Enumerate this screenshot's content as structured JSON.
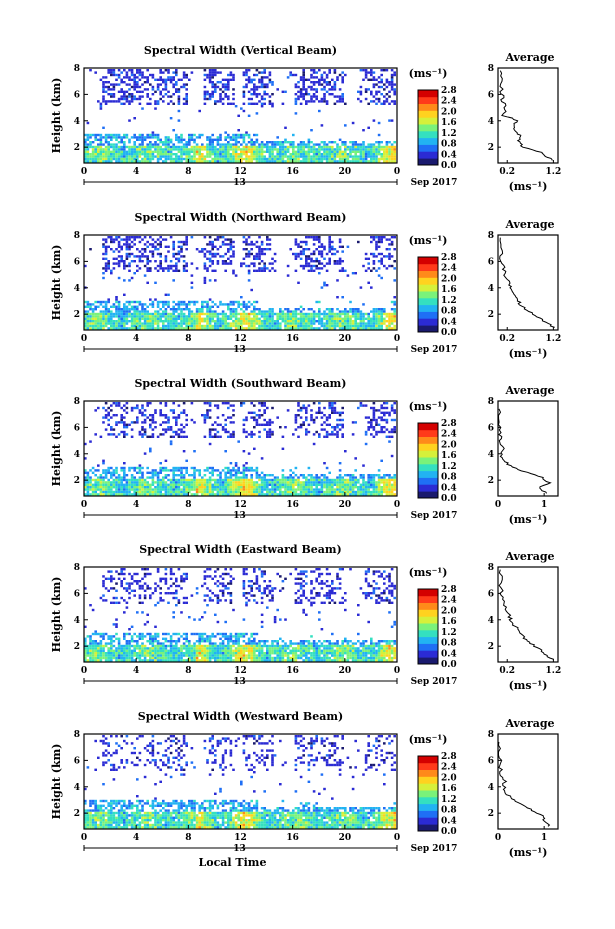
{
  "figure": {
    "date_label": "Sep 2017",
    "x_axis_label": "Local Time",
    "height_axis_label": "Height (km)",
    "colorbar_unit": "(ms⁻¹)",
    "average_title": "Average",
    "average_unit": "(ms⁻¹)"
  },
  "colorbar": {
    "ticks": [
      "2.8",
      "2.4",
      "2.0",
      "1.6",
      "1.2",
      "0.8",
      "0.4",
      "0.0"
    ],
    "colors": [
      "#1a1a6e",
      "#2b2bd4",
      "#1f6ff5",
      "#22b3f2",
      "#34e0c0",
      "#7af27a",
      "#d6f03a",
      "#ffd21f",
      "#ff8a1a",
      "#ff3a1a",
      "#d40000"
    ]
  },
  "chart_data": [
    {
      "type": "heatmap",
      "title": "Spectral Width (Vertical Beam)",
      "xlabel": "",
      "ylabel": "Height (km)",
      "x_ticks": [
        "0",
        "4",
        "8",
        "12",
        "16",
        "20",
        "0"
      ],
      "x_day_label": "13",
      "y_ticks": [
        "8",
        "6",
        "4",
        "2"
      ],
      "xlim": [
        0,
        24
      ],
      "ylim": [
        0.8,
        8
      ],
      "value_range": [
        0.0,
        2.8
      ],
      "average": {
        "title": "Average",
        "xlabel": "(ms⁻¹)",
        "x_ticks": [
          "0.2",
          "1.2"
        ],
        "xlim": [
          0,
          1.3
        ],
        "y_ticks": [
          "8",
          "6",
          "4",
          "2"
        ],
        "profile_height": [
          1.0,
          1.3,
          1.6,
          2.0,
          2.4,
          2.8,
          3.2,
          3.6,
          4.0,
          4.4,
          5.0,
          5.6,
          6.2,
          7.0,
          7.8
        ],
        "profile_width": [
          1.2,
          1.05,
          0.95,
          0.55,
          0.45,
          0.5,
          0.35,
          0.32,
          0.45,
          0.12,
          0.15,
          0.1,
          0.08,
          0.06,
          0.05
        ]
      }
    },
    {
      "type": "heatmap",
      "title": "Spectral Width (Northward Beam)",
      "xlabel": "",
      "ylabel": "Height (km)",
      "x_ticks": [
        "0",
        "4",
        "8",
        "12",
        "16",
        "20",
        "0"
      ],
      "x_day_label": "13",
      "y_ticks": [
        "8",
        "6",
        "4",
        "2"
      ],
      "xlim": [
        0,
        24
      ],
      "ylim": [
        0.8,
        8
      ],
      "value_range": [
        0.0,
        2.8
      ],
      "average": {
        "title": "Average",
        "xlabel": "(ms⁻¹)",
        "x_ticks": [
          "0.2",
          "1.2"
        ],
        "xlim": [
          0,
          1.3
        ],
        "y_ticks": [
          "8",
          "6",
          "4",
          "2"
        ],
        "profile_height": [
          1.0,
          1.4,
          1.8,
          2.2,
          2.6,
          3.0,
          3.4,
          3.8,
          4.2,
          4.8,
          5.4,
          6.0,
          6.8,
          7.8
        ],
        "profile_width": [
          1.2,
          1.05,
          0.85,
          0.7,
          0.5,
          0.45,
          0.38,
          0.3,
          0.25,
          0.18,
          0.12,
          0.08,
          0.06,
          0.05
        ]
      }
    },
    {
      "type": "heatmap",
      "title": "Spectral Width (Southward Beam)",
      "xlabel": "",
      "ylabel": "Height (km)",
      "x_ticks": [
        "0",
        "4",
        "8",
        "12",
        "16",
        "20",
        "0"
      ],
      "x_day_label": "13",
      "y_ticks": [
        "8",
        "6",
        "4",
        "2"
      ],
      "xlim": [
        0,
        24
      ],
      "ylim": [
        0.8,
        8
      ],
      "value_range": [
        0.0,
        2.8
      ],
      "average": {
        "title": "Average",
        "xlabel": "(ms⁻¹)",
        "x_ticks": [
          "0",
          "1"
        ],
        "xlim": [
          0,
          1.3
        ],
        "y_ticks": [
          "8",
          "6",
          "4",
          "2"
        ],
        "profile_height": [
          1.0,
          1.4,
          1.8,
          2.2,
          2.6,
          3.0,
          3.4,
          3.8,
          4.4,
          5.0,
          5.6,
          6.4,
          7.4
        ],
        "profile_width": [
          1.05,
          0.9,
          1.1,
          0.95,
          0.6,
          0.3,
          0.15,
          0.08,
          0.1,
          0.05,
          0.04,
          0.03,
          0.02
        ]
      }
    },
    {
      "type": "heatmap",
      "title": "Spectral Width (Eastward Beam)",
      "xlabel": "",
      "ylabel": "Height (km)",
      "x_ticks": [
        "0",
        "4",
        "8",
        "12",
        "16",
        "20",
        "0"
      ],
      "x_day_label": "13",
      "y_ticks": [
        "8",
        "6",
        "4",
        "2"
      ],
      "xlim": [
        0,
        24
      ],
      "ylim": [
        0.8,
        8
      ],
      "value_range": [
        0.0,
        2.8
      ],
      "average": {
        "title": "Average",
        "xlabel": "(ms⁻¹)",
        "x_ticks": [
          "0.2",
          "1.2"
        ],
        "xlim": [
          0,
          1.3
        ],
        "y_ticks": [
          "8",
          "6",
          "4",
          "2"
        ],
        "profile_height": [
          1.0,
          1.4,
          1.8,
          2.2,
          2.6,
          3.0,
          3.4,
          3.8,
          4.2,
          4.8,
          5.4,
          6.0,
          6.8,
          7.8
        ],
        "profile_width": [
          1.2,
          1.0,
          0.9,
          0.7,
          0.55,
          0.5,
          0.4,
          0.3,
          0.25,
          0.18,
          0.12,
          0.08,
          0.06,
          0.05
        ]
      }
    },
    {
      "type": "heatmap",
      "title": "Spectral Width (Westward Beam)",
      "xlabel": "Local Time",
      "ylabel": "Height (km)",
      "x_ticks": [
        "0",
        "4",
        "8",
        "12",
        "16",
        "20",
        "0"
      ],
      "x_day_label": "13",
      "y_ticks": [
        "8",
        "6",
        "4",
        "2"
      ],
      "xlim": [
        0,
        24
      ],
      "ylim": [
        0.8,
        8
      ],
      "value_range": [
        0.0,
        2.8
      ],
      "average": {
        "title": "Average",
        "xlabel": "(ms⁻¹)",
        "x_ticks": [
          "0",
          "1"
        ],
        "xlim": [
          0,
          1.3
        ],
        "y_ticks": [
          "8",
          "6",
          "4",
          "2"
        ],
        "profile_height": [
          1.0,
          1.4,
          1.8,
          2.2,
          2.6,
          3.0,
          3.4,
          3.8,
          4.4,
          5.0,
          5.6,
          6.4,
          7.4
        ],
        "profile_width": [
          1.1,
          1.0,
          0.95,
          0.75,
          0.55,
          0.35,
          0.2,
          0.12,
          0.15,
          0.06,
          0.05,
          0.03,
          0.02
        ]
      }
    }
  ]
}
